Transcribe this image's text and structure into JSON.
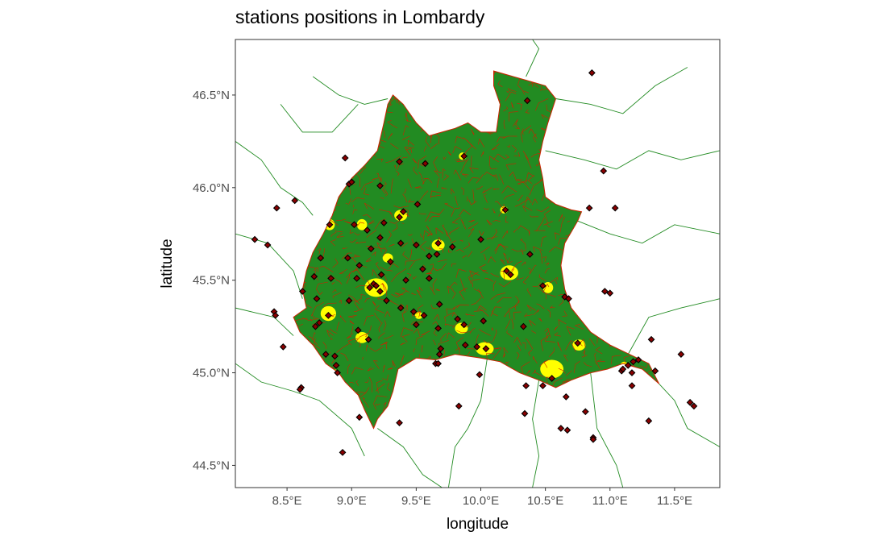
{
  "title": "stations positions in Lombardy",
  "x_axis": {
    "label": "longitude",
    "range": [
      8.1,
      11.85
    ],
    "ticks": [
      {
        "value": 8.5,
        "label": "8.5°E"
      },
      {
        "value": 9.0,
        "label": "9.0°E"
      },
      {
        "value": 9.5,
        "label": "9.5°E"
      },
      {
        "value": 10.0,
        "label": "10.0°E"
      },
      {
        "value": 10.5,
        "label": "10.5°E"
      },
      {
        "value": 11.0,
        "label": "11.0°E"
      },
      {
        "value": 11.5,
        "label": "11.5°E"
      }
    ]
  },
  "y_axis": {
    "label": "latitude",
    "range": [
      44.38,
      46.8
    ],
    "ticks": [
      {
        "value": 44.5,
        "label": "44.5°N"
      },
      {
        "value": 45.0,
        "label": "45.0°N"
      },
      {
        "value": 45.5,
        "label": "45.5°N"
      },
      {
        "value": 46.0,
        "label": "46.0°N"
      },
      {
        "value": 46.5,
        "label": "46.5°N"
      }
    ]
  },
  "colors": {
    "region_fill": "#228b22",
    "municipal_border": "#cc2200",
    "neighbor_border": "#228b22",
    "urban_fill": "#ffff00",
    "station_fill": "#8b0000",
    "station_stroke": "#000000",
    "panel_border": "#333333"
  },
  "lombardy_outline": [
    [
      9.17,
      44.7
    ],
    [
      9.2,
      44.75
    ],
    [
      9.28,
      44.82
    ],
    [
      9.32,
      44.9
    ],
    [
      9.36,
      45.02
    ],
    [
      9.5,
      45.08
    ],
    [
      9.65,
      45.07
    ],
    [
      9.8,
      45.1
    ],
    [
      10.0,
      45.08
    ],
    [
      10.15,
      45.06
    ],
    [
      10.3,
      45.0
    ],
    [
      10.45,
      44.96
    ],
    [
      10.58,
      44.92
    ],
    [
      10.7,
      44.96
    ],
    [
      10.85,
      45.0
    ],
    [
      10.98,
      45.02
    ],
    [
      11.1,
      45.05
    ],
    [
      11.25,
      45.02
    ],
    [
      11.38,
      44.94
    ],
    [
      11.3,
      45.05
    ],
    [
      11.15,
      45.1
    ],
    [
      11.0,
      45.15
    ],
    [
      10.85,
      45.22
    ],
    [
      10.7,
      45.35
    ],
    [
      10.65,
      45.45
    ],
    [
      10.62,
      45.58
    ],
    [
      10.65,
      45.7
    ],
    [
      10.75,
      45.82
    ],
    [
      10.78,
      45.87
    ],
    [
      10.7,
      45.88
    ],
    [
      10.58,
      45.91
    ],
    [
      10.5,
      45.95
    ],
    [
      10.48,
      46.05
    ],
    [
      10.45,
      46.15
    ],
    [
      10.48,
      46.25
    ],
    [
      10.52,
      46.35
    ],
    [
      10.58,
      46.48
    ],
    [
      10.5,
      46.55
    ],
    [
      10.35,
      46.58
    ],
    [
      10.25,
      46.6
    ],
    [
      10.1,
      46.63
    ],
    [
      10.1,
      46.55
    ],
    [
      10.15,
      46.45
    ],
    [
      10.12,
      46.3
    ],
    [
      10.0,
      46.3
    ],
    [
      9.9,
      46.35
    ],
    [
      9.8,
      46.32
    ],
    [
      9.7,
      46.3
    ],
    [
      9.6,
      46.28
    ],
    [
      9.5,
      46.35
    ],
    [
      9.4,
      46.45
    ],
    [
      9.32,
      46.5
    ],
    [
      9.28,
      46.45
    ],
    [
      9.25,
      46.35
    ],
    [
      9.2,
      46.2
    ],
    [
      9.1,
      46.12
    ],
    [
      9.0,
      46.05
    ],
    [
      8.9,
      45.95
    ],
    [
      8.85,
      45.85
    ],
    [
      8.78,
      45.75
    ],
    [
      8.7,
      45.65
    ],
    [
      8.65,
      45.55
    ],
    [
      8.62,
      45.45
    ],
    [
      8.65,
      45.35
    ],
    [
      8.55,
      45.3
    ],
    [
      8.6,
      45.22
    ],
    [
      8.7,
      45.15
    ],
    [
      8.8,
      45.05
    ],
    [
      8.9,
      45.0
    ],
    [
      8.95,
      44.95
    ],
    [
      9.05,
      44.88
    ],
    [
      9.1,
      44.8
    ]
  ],
  "neighbor_borders": [
    [
      [
        8.1,
        46.25
      ],
      [
        8.3,
        46.15
      ],
      [
        8.45,
        46.0
      ],
      [
        8.62,
        45.92
      ],
      [
        8.7,
        45.85
      ]
    ],
    [
      [
        8.1,
        45.75
      ],
      [
        8.35,
        45.7
      ],
      [
        8.55,
        45.55
      ],
      [
        8.62,
        45.4
      ]
    ],
    [
      [
        8.1,
        45.35
      ],
      [
        8.4,
        45.3
      ],
      [
        8.55,
        45.2
      ]
    ],
    [
      [
        8.1,
        45.05
      ],
      [
        8.3,
        44.95
      ],
      [
        8.55,
        44.9
      ],
      [
        8.75,
        44.85
      ],
      [
        9.0,
        44.7
      ],
      [
        9.1,
        44.55
      ]
    ],
    [
      [
        9.2,
        44.7
      ],
      [
        9.4,
        44.6
      ],
      [
        9.55,
        44.45
      ],
      [
        9.7,
        44.38
      ]
    ],
    [
      [
        8.7,
        46.6
      ],
      [
        8.9,
        46.5
      ],
      [
        9.1,
        46.45
      ],
      [
        9.28,
        46.48
      ]
    ],
    [
      [
        9.05,
        46.45
      ],
      [
        8.85,
        46.3
      ],
      [
        8.62,
        46.3
      ],
      [
        8.45,
        46.45
      ]
    ],
    [
      [
        10.35,
        46.6
      ],
      [
        10.45,
        46.75
      ],
      [
        10.4,
        46.8
      ]
    ],
    [
      [
        10.58,
        46.48
      ],
      [
        10.85,
        46.45
      ],
      [
        11.1,
        46.4
      ],
      [
        11.35,
        46.55
      ],
      [
        11.6,
        46.65
      ]
    ],
    [
      [
        10.5,
        46.2
      ],
      [
        10.8,
        46.15
      ],
      [
        11.05,
        46.1
      ],
      [
        11.3,
        46.2
      ],
      [
        11.55,
        46.15
      ],
      [
        11.85,
        46.2
      ]
    ],
    [
      [
        10.75,
        45.82
      ],
      [
        11.0,
        45.75
      ],
      [
        11.25,
        45.7
      ],
      [
        11.5,
        45.8
      ],
      [
        11.85,
        45.75
      ]
    ],
    [
      [
        11.38,
        44.94
      ],
      [
        11.5,
        44.85
      ],
      [
        11.6,
        44.7
      ],
      [
        11.85,
        44.6
      ]
    ],
    [
      [
        10.45,
        44.96
      ],
      [
        10.4,
        44.75
      ],
      [
        10.45,
        44.55
      ],
      [
        10.4,
        44.38
      ]
    ],
    [
      [
        10.05,
        45.08
      ],
      [
        10.0,
        44.85
      ],
      [
        9.9,
        44.7
      ],
      [
        9.8,
        44.6
      ],
      [
        9.75,
        44.38
      ]
    ],
    [
      [
        10.85,
        45.0
      ],
      [
        10.9,
        44.7
      ],
      [
        11.05,
        44.5
      ],
      [
        11.1,
        44.38
      ]
    ],
    [
      [
        11.1,
        45.05
      ],
      [
        11.3,
        45.3
      ],
      [
        11.55,
        45.35
      ],
      [
        11.85,
        45.4
      ]
    ]
  ],
  "urban_areas": [
    [
      9.19,
      45.46,
      0.09,
      0.05
    ],
    [
      9.67,
      45.69,
      0.05,
      0.03
    ],
    [
      10.22,
      45.54,
      0.07,
      0.04
    ],
    [
      9.08,
      45.8,
      0.04,
      0.03
    ],
    [
      9.85,
      45.24,
      0.05,
      0.03
    ],
    [
      9.08,
      45.19,
      0.05,
      0.03
    ],
    [
      10.03,
      45.13,
      0.07,
      0.035
    ],
    [
      10.76,
      45.15,
      0.05,
      0.03
    ],
    [
      10.55,
      45.02,
      0.09,
      0.05
    ],
    [
      8.82,
      45.32,
      0.06,
      0.04
    ],
    [
      8.86,
      44.99,
      0.04,
      0.03
    ],
    [
      9.38,
      45.85,
      0.05,
      0.03
    ],
    [
      10.52,
      45.46,
      0.04,
      0.03
    ],
    [
      8.83,
      45.8,
      0.04,
      0.03
    ],
    [
      9.88,
      45.07,
      0.03,
      0.02
    ],
    [
      9.52,
      45.31,
      0.03,
      0.02
    ],
    [
      10.18,
      45.88,
      0.03,
      0.02
    ],
    [
      9.86,
      46.17,
      0.03,
      0.02
    ],
    [
      11.11,
      45.04,
      0.03,
      0.02
    ],
    [
      9.28,
      45.62,
      0.04,
      0.025
    ]
  ],
  "stations": [
    [
      10.86,
      46.62
    ],
    [
      10.36,
      46.47
    ],
    [
      9.87,
      46.17
    ],
    [
      9.37,
      46.14
    ],
    [
      9.57,
      46.13
    ],
    [
      8.95,
      46.16
    ],
    [
      8.98,
      46.02
    ],
    [
      9.0,
      46.03
    ],
    [
      10.95,
      46.09
    ],
    [
      9.22,
      46.01
    ],
    [
      8.56,
      45.93
    ],
    [
      8.42,
      45.89
    ],
    [
      9.51,
      45.91
    ],
    [
      10.84,
      45.89
    ],
    [
      11.04,
      45.89
    ],
    [
      10.19,
      45.88
    ],
    [
      9.4,
      45.87
    ],
    [
      9.37,
      45.84
    ],
    [
      9.25,
      45.81
    ],
    [
      9.02,
      45.8
    ],
    [
      8.83,
      45.8
    ],
    [
      9.12,
      45.77
    ],
    [
      8.25,
      45.72
    ],
    [
      8.35,
      45.69
    ],
    [
      10.0,
      45.72
    ],
    [
      9.67,
      45.7
    ],
    [
      9.38,
      45.7
    ],
    [
      9.5,
      45.69
    ],
    [
      9.15,
      45.67
    ],
    [
      9.66,
      45.64
    ],
    [
      9.6,
      45.63
    ],
    [
      10.38,
      45.64
    ],
    [
      8.76,
      45.62
    ],
    [
      8.97,
      45.62
    ],
    [
      9.3,
      45.6
    ],
    [
      9.06,
      45.58
    ],
    [
      9.55,
      45.56
    ],
    [
      10.2,
      45.55
    ],
    [
      10.23,
      45.53
    ],
    [
      9.23,
      45.53
    ],
    [
      9.17,
      45.48
    ],
    [
      8.84,
      45.51
    ],
    [
      9.04,
      45.51
    ],
    [
      9.6,
      45.51
    ],
    [
      8.71,
      45.52
    ],
    [
      9.19,
      45.47
    ],
    [
      9.14,
      45.46
    ],
    [
      9.22,
      45.44
    ],
    [
      10.48,
      45.47
    ],
    [
      10.96,
      45.44
    ],
    [
      11.0,
      45.43
    ],
    [
      8.62,
      45.44
    ],
    [
      10.65,
      45.41
    ],
    [
      10.68,
      45.4
    ],
    [
      9.27,
      45.39
    ],
    [
      8.73,
      45.4
    ],
    [
      9.68,
      45.37
    ],
    [
      9.38,
      45.35
    ],
    [
      9.48,
      45.33
    ],
    [
      8.4,
      45.33
    ],
    [
      8.41,
      45.31
    ],
    [
      8.82,
      45.31
    ],
    [
      9.56,
      45.31
    ],
    [
      9.82,
      45.29
    ],
    [
      9.87,
      45.26
    ],
    [
      8.75,
      45.27
    ],
    [
      10.02,
      45.28
    ],
    [
      9.5,
      45.26
    ],
    [
      10.33,
      45.25
    ],
    [
      8.72,
      45.25
    ],
    [
      9.05,
      45.23
    ],
    [
      9.67,
      45.24
    ],
    [
      9.13,
      45.18
    ],
    [
      10.75,
      45.16
    ],
    [
      11.32,
      45.18
    ],
    [
      9.88,
      45.15
    ],
    [
      8.47,
      45.14
    ],
    [
      9.69,
      45.13
    ],
    [
      10.04,
      45.13
    ],
    [
      9.97,
      45.14
    ],
    [
      11.55,
      45.1
    ],
    [
      8.8,
      45.1
    ],
    [
      8.87,
      45.09
    ],
    [
      9.68,
      45.1
    ],
    [
      11.22,
      45.07
    ],
    [
      11.18,
      45.06
    ],
    [
      11.14,
      45.04
    ],
    [
      11.09,
      45.01
    ],
    [
      11.17,
      45.0
    ],
    [
      11.1,
      45.02
    ],
    [
      9.65,
      45.05
    ],
    [
      9.67,
      45.05
    ],
    [
      8.88,
      45.04
    ],
    [
      8.89,
      45.0
    ],
    [
      9.99,
      44.99
    ],
    [
      11.35,
      45.01
    ],
    [
      10.55,
      44.97
    ],
    [
      11.17,
      44.93
    ],
    [
      10.48,
      44.93
    ],
    [
      10.35,
      44.93
    ],
    [
      8.61,
      44.92
    ],
    [
      8.6,
      44.91
    ],
    [
      10.66,
      44.87
    ],
    [
      11.62,
      44.84
    ],
    [
      11.65,
      44.82
    ],
    [
      9.83,
      44.82
    ],
    [
      10.34,
      44.78
    ],
    [
      10.81,
      44.79
    ],
    [
      9.06,
      44.76
    ],
    [
      11.3,
      44.74
    ],
    [
      9.37,
      44.73
    ],
    [
      10.62,
      44.7
    ],
    [
      10.67,
      44.69
    ],
    [
      10.87,
      44.65
    ],
    [
      10.87,
      44.64
    ],
    [
      8.93,
      44.57
    ],
    [
      9.22,
      45.73
    ],
    [
      8.98,
      45.39
    ],
    [
      9.42,
      45.5
    ],
    [
      9.78,
      45.68
    ]
  ]
}
